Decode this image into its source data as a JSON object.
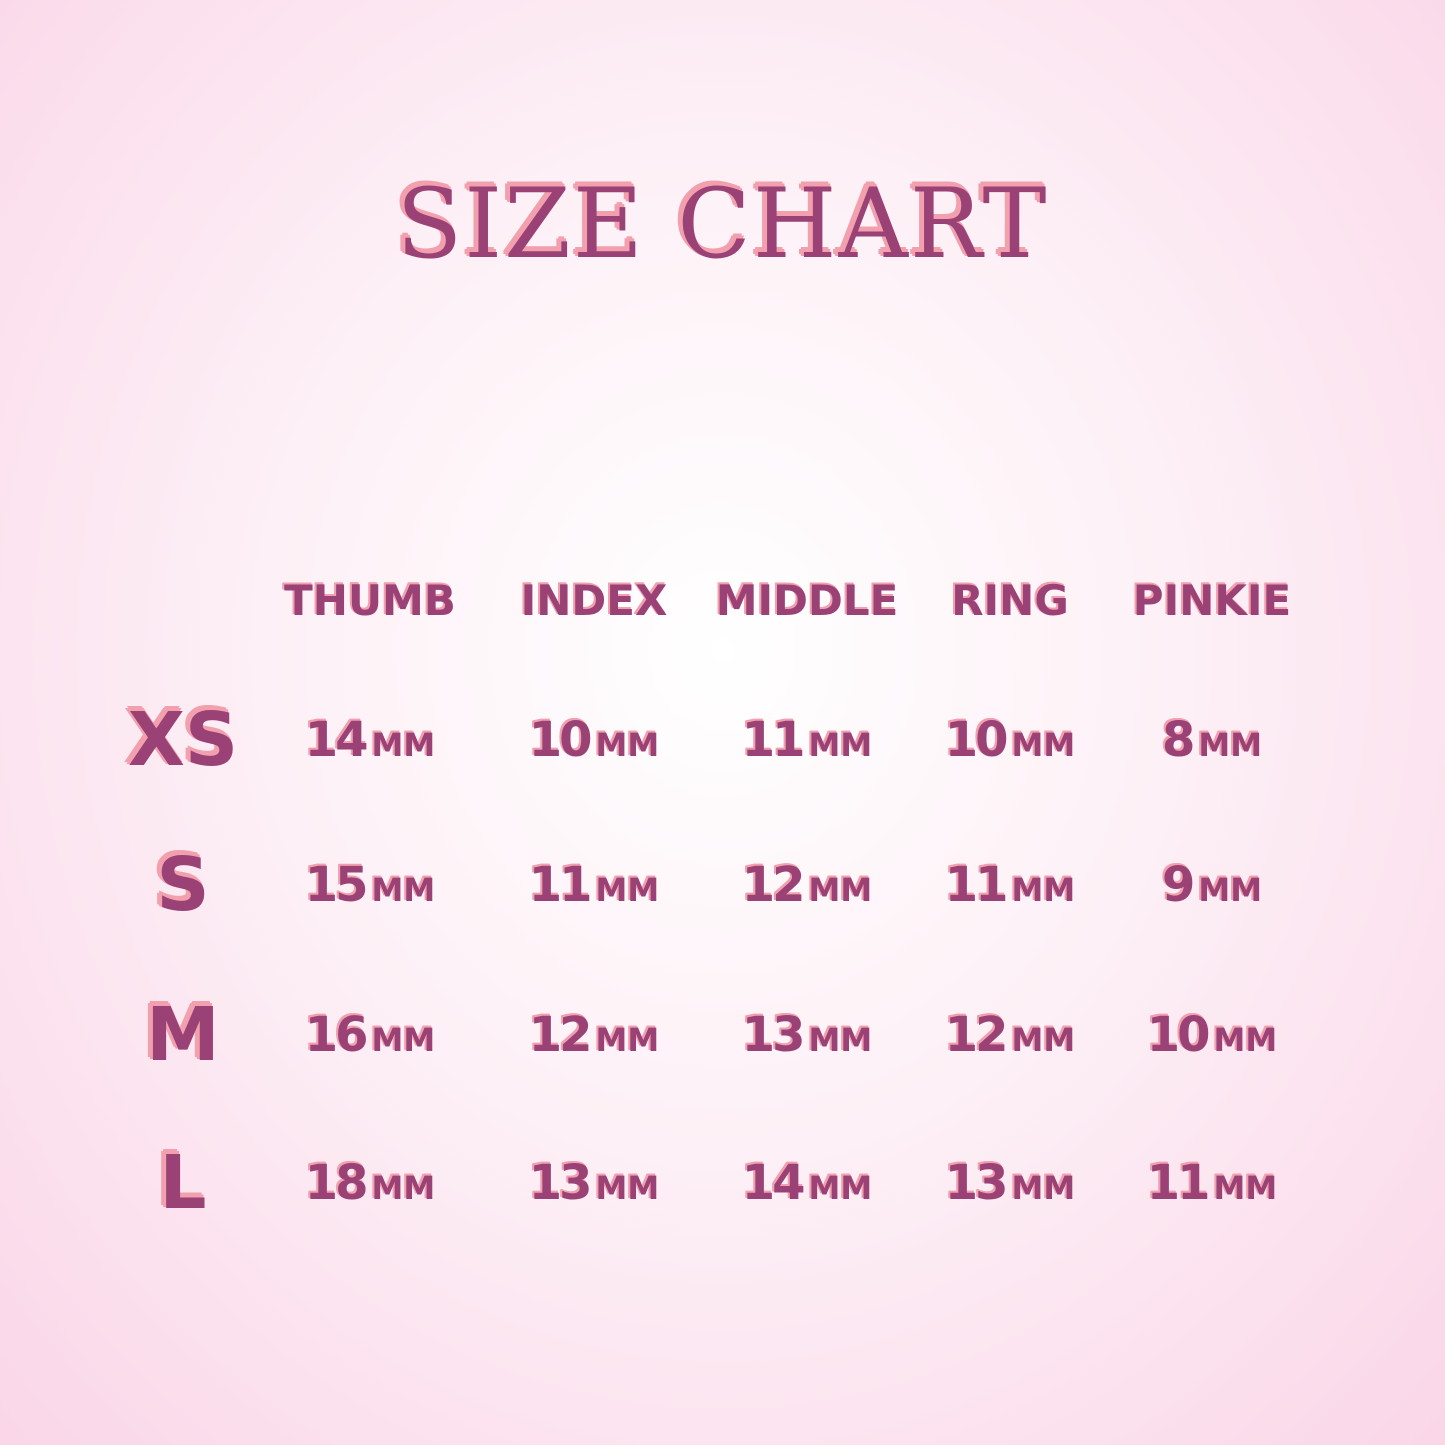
{
  "title": "SIZE CHART",
  "colors": {
    "fill": "#9a4175",
    "outline": "#f2a0ad",
    "background": "#fce8f2"
  },
  "columns": [
    "THUMB",
    "INDEX",
    "MIDDLE",
    "RING",
    "PINKIE"
  ],
  "unit": "MM",
  "rows": [
    {
      "size": "XS",
      "values": [
        "14",
        "10",
        "11",
        "10",
        "8"
      ]
    },
    {
      "size": "S",
      "values": [
        "15",
        "11",
        "12",
        "11",
        "9"
      ]
    },
    {
      "size": "M",
      "values": [
        "16",
        "12",
        "13",
        "12",
        "10"
      ]
    },
    {
      "size": "L",
      "values": [
        "18",
        "13",
        "14",
        "13",
        "11"
      ]
    }
  ]
}
